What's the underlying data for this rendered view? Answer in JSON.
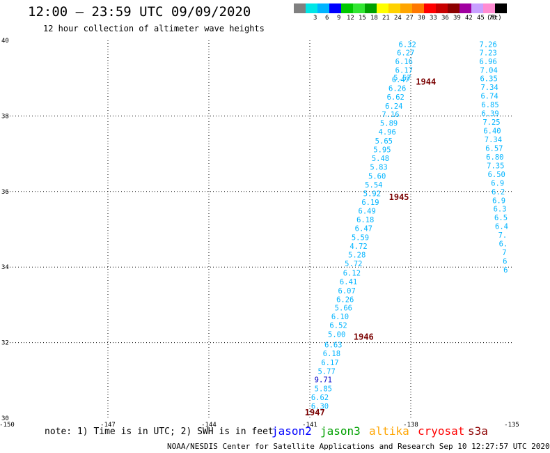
{
  "header": {
    "title": "12:00 – 23:59 UTC 09/09/2020",
    "subtitle": "12 hour collection of altimeter wave heights"
  },
  "color_scale": {
    "units": "(ft)",
    "bins": [
      {
        "label": "",
        "color": "#808080"
      },
      {
        "label": "3",
        "color": "#00e6e6"
      },
      {
        "label": "6",
        "color": "#00b4ff"
      },
      {
        "label": "9",
        "color": "#0000ff"
      },
      {
        "label": "12",
        "color": "#00c800"
      },
      {
        "label": "15",
        "color": "#32e632"
      },
      {
        "label": "18",
        "color": "#00a000"
      },
      {
        "label": "21",
        "color": "#ffff00"
      },
      {
        "label": "24",
        "color": "#ffd200"
      },
      {
        "label": "27",
        "color": "#ffa500"
      },
      {
        "label": "30",
        "color": "#ff7800"
      },
      {
        "label": "33",
        "color": "#ff0000"
      },
      {
        "label": "36",
        "color": "#c80000"
      },
      {
        "label": "39",
        "color": "#8c0000"
      },
      {
        "label": "42",
        "color": "#a000a0"
      },
      {
        "label": "45",
        "color": "#c8a0ff"
      },
      {
        "label": "70",
        "color": "#ff8cd2"
      },
      {
        "label": "",
        "color": "#000000"
      }
    ]
  },
  "map": {
    "lon_range": [
      -150,
      -135
    ],
    "lat_range": [
      30,
      40
    ],
    "lon_ticks": [
      "-150",
      "-147",
      "-144",
      "-141",
      "-138",
      "-135"
    ],
    "lat_ticks": [
      "30",
      "32",
      "34",
      "36",
      "38",
      "40"
    ],
    "grid": "dotted",
    "label_colors": {
      "swh": "#00b4ff",
      "high": "#0000c8",
      "time": "#7a0000"
    }
  },
  "tracks": [
    {
      "name": "track-a",
      "points": [
        {
          "lon": -140.7,
          "lat": 30.32,
          "swh": "6.30"
        },
        {
          "lon": -140.7,
          "lat": 30.55,
          "swh": "6.62"
        },
        {
          "lon": -140.6,
          "lat": 30.78,
          "swh": "5.85"
        },
        {
          "lon": -140.6,
          "lat": 31.02,
          "swh": "9.71",
          "high": true
        },
        {
          "lon": -140.5,
          "lat": 31.25,
          "swh": "5.77"
        },
        {
          "lon": -140.4,
          "lat": 31.48,
          "swh": "6.17"
        },
        {
          "lon": -140.35,
          "lat": 31.72,
          "swh": "6.18"
        },
        {
          "lon": -140.3,
          "lat": 31.95,
          "swh": "6.63"
        },
        {
          "lon": -140.2,
          "lat": 32.22,
          "swh": "5.00"
        },
        {
          "lon": -140.15,
          "lat": 32.46,
          "swh": "6.52"
        },
        {
          "lon": -140.1,
          "lat": 32.69,
          "swh": "6.10"
        },
        {
          "lon": -140.0,
          "lat": 32.92,
          "swh": "5.66"
        },
        {
          "lon": -139.95,
          "lat": 33.15,
          "swh": "6.26"
        },
        {
          "lon": -139.9,
          "lat": 33.38,
          "swh": "6.07"
        },
        {
          "lon": -139.85,
          "lat": 33.62,
          "swh": "6.41"
        },
        {
          "lon": -139.75,
          "lat": 33.85,
          "swh": "6.12"
        },
        {
          "lon": -139.7,
          "lat": 34.1,
          "swh": "5.72"
        },
        {
          "lon": -139.6,
          "lat": 34.33,
          "swh": "5.28"
        },
        {
          "lon": -139.55,
          "lat": 34.56,
          "swh": "4.72"
        },
        {
          "lon": -139.5,
          "lat": 34.79,
          "swh": "5.59"
        },
        {
          "lon": -139.4,
          "lat": 35.03,
          "swh": "6.47"
        },
        {
          "lon": -139.35,
          "lat": 35.26,
          "swh": "6.18"
        },
        {
          "lon": -139.3,
          "lat": 35.49,
          "swh": "6.49"
        },
        {
          "lon": -139.2,
          "lat": 35.72,
          "swh": "6.19"
        },
        {
          "lon": -139.15,
          "lat": 35.95,
          "swh": "5.92"
        },
        {
          "lon": -139.1,
          "lat": 36.18,
          "swh": "5.54"
        },
        {
          "lon": -139.0,
          "lat": 36.41,
          "swh": "5.60"
        },
        {
          "lon": -138.95,
          "lat": 36.65,
          "swh": "5.83"
        },
        {
          "lon": -138.9,
          "lat": 36.88,
          "swh": "5.48"
        },
        {
          "lon": -138.85,
          "lat": 37.11,
          "swh": "5.95"
        },
        {
          "lon": -138.8,
          "lat": 37.34,
          "swh": "5.65"
        },
        {
          "lon": -138.7,
          "lat": 37.58,
          "swh": "4.96"
        },
        {
          "lon": -138.65,
          "lat": 37.81,
          "swh": "5.89"
        },
        {
          "lon": -138.6,
          "lat": 38.04,
          "swh": "7.16"
        },
        {
          "lon": -138.5,
          "lat": 38.27,
          "swh": "6.24"
        },
        {
          "lon": -138.45,
          "lat": 38.51,
          "swh": "6.62"
        },
        {
          "lon": -138.4,
          "lat": 38.74,
          "swh": "6.26"
        },
        {
          "lon": -138.3,
          "lat": 38.97,
          "swh": "6.47"
        },
        {
          "lon": -138.25,
          "lat": 39.01,
          "swh": "5.57"
        },
        {
          "lon": -138.2,
          "lat": 39.22,
          "swh": "6.17"
        },
        {
          "lon": -138.2,
          "lat": 39.45,
          "swh": "6.16"
        },
        {
          "lon": -138.15,
          "lat": 39.68,
          "swh": "6.27"
        },
        {
          "lon": -138.1,
          "lat": 39.9,
          "swh": "6.32"
        }
      ],
      "times": [
        {
          "lon": -140.85,
          "lat": 30.15,
          "label": "1947"
        },
        {
          "lon": -139.4,
          "lat": 32.15,
          "label": "1946"
        },
        {
          "lon": -138.35,
          "lat": 35.85,
          "label": "1945"
        },
        {
          "lon": -137.55,
          "lat": 38.9,
          "label": "1944"
        }
      ]
    },
    {
      "name": "track-b",
      "points": [
        {
          "lon": -135.7,
          "lat": 39.9,
          "swh": "7.26"
        },
        {
          "lon": -135.7,
          "lat": 39.68,
          "swh": "7.23"
        },
        {
          "lon": -135.7,
          "lat": 39.45,
          "swh": "6.96"
        },
        {
          "lon": -135.68,
          "lat": 39.22,
          "swh": "7.04"
        },
        {
          "lon": -135.68,
          "lat": 38.99,
          "swh": "6.35"
        },
        {
          "lon": -135.66,
          "lat": 38.76,
          "swh": "7.34"
        },
        {
          "lon": -135.66,
          "lat": 38.53,
          "swh": "6.74"
        },
        {
          "lon": -135.64,
          "lat": 38.3,
          "swh": "6.85"
        },
        {
          "lon": -135.64,
          "lat": 38.07,
          "swh": "6.39"
        },
        {
          "lon": -135.6,
          "lat": 37.84,
          "swh": "7.25"
        },
        {
          "lon": -135.58,
          "lat": 37.61,
          "swh": "6.40"
        },
        {
          "lon": -135.55,
          "lat": 37.38,
          "swh": "7.34"
        },
        {
          "lon": -135.52,
          "lat": 37.15,
          "swh": "6.57"
        },
        {
          "lon": -135.5,
          "lat": 36.92,
          "swh": "6.80"
        },
        {
          "lon": -135.48,
          "lat": 36.69,
          "swh": "7.35"
        },
        {
          "lon": -135.45,
          "lat": 36.46,
          "swh": "6.50"
        },
        {
          "lon": -135.42,
          "lat": 36.23,
          "swh": "6.9"
        },
        {
          "lon": -135.4,
          "lat": 36.0,
          "swh": "6.2"
        },
        {
          "lon": -135.38,
          "lat": 35.77,
          "swh": "6.9"
        },
        {
          "lon": -135.35,
          "lat": 35.54,
          "swh": "6.3"
        },
        {
          "lon": -135.32,
          "lat": 35.31,
          "swh": "6.5"
        },
        {
          "lon": -135.3,
          "lat": 35.08,
          "swh": "6.4"
        },
        {
          "lon": -135.27,
          "lat": 34.85,
          "swh": "7."
        },
        {
          "lon": -135.25,
          "lat": 34.62,
          "swh": "6."
        },
        {
          "lon": -135.22,
          "lat": 34.39,
          "swh": "7"
        },
        {
          "lon": -135.2,
          "lat": 34.16,
          "swh": "6"
        },
        {
          "lon": -135.18,
          "lat": 33.93,
          "swh": "6"
        }
      ],
      "times": []
    }
  ],
  "note": "note: 1) Time is in UTC; 2) SWH is in feet",
  "satellites": [
    {
      "name": "jason2",
      "color": "#0000ff"
    },
    {
      "name": "jason3",
      "color": "#00a000"
    },
    {
      "name": "altika",
      "color": "#ffa500"
    },
    {
      "name": "cryosat",
      "color": "#ff0000"
    },
    {
      "name": "s3a",
      "color": "#8c0000"
    }
  ],
  "credit": "NOAA/NESDIS Center for Satellite Applications and Research   Sep 10 12:27:57 UTC 2020"
}
